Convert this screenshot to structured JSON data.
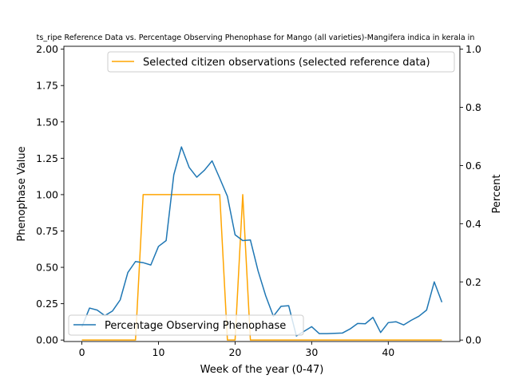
{
  "chart_data": {
    "type": "line",
    "title": "ts_ripe Reference Data vs. Percentage Observing Phenophase for Mango (all varieties)-Mangifera indica in kerala in",
    "xlabel": "Week of the year (0-47)",
    "ylabel_left": "Phenophase Value",
    "ylabel_right": "Percent",
    "xlim": [
      -2.35,
      49.35
    ],
    "ylim_left": [
      -0.01,
      2.02
    ],
    "ylim_right": [
      -0.005,
      1.01
    ],
    "x_ticks": [
      0,
      10,
      20,
      30,
      40
    ],
    "y_ticks_left": [
      0.0,
      0.25,
      0.5,
      0.75,
      1.0,
      1.25,
      1.5,
      1.75,
      2.0
    ],
    "y_tick_labels_left": [
      "0.00",
      "0.25",
      "0.50",
      "0.75",
      "1.00",
      "1.25",
      "1.50",
      "1.75",
      "2.00"
    ],
    "y_ticks_right": [
      0.0,
      0.2,
      0.4,
      0.6,
      0.8,
      1.0
    ],
    "y_tick_labels_right": [
      "0.0",
      "0.2",
      "0.4",
      "0.6",
      "0.8",
      "1.0"
    ],
    "grid": false,
    "series": [
      {
        "name": "Selected citizen observations (selected reference data)",
        "axis": "left",
        "color": "#ffa500",
        "legend_position": "top-right",
        "x": [
          0,
          1,
          2,
          3,
          4,
          5,
          6,
          7,
          8,
          9,
          10,
          11,
          12,
          13,
          14,
          15,
          16,
          17,
          18,
          19,
          20,
          21,
          22,
          23,
          24,
          25,
          26,
          27,
          28,
          29,
          30,
          31,
          32,
          33,
          34,
          35,
          36,
          37,
          38,
          39,
          40,
          41,
          42,
          43,
          44,
          45,
          46,
          47
        ],
        "values": [
          0,
          0,
          0,
          0,
          0,
          0,
          0,
          0,
          1,
          1,
          1,
          1,
          1,
          1,
          1,
          1,
          1,
          1,
          1,
          0,
          0,
          1,
          0,
          0,
          0,
          0,
          0,
          0,
          0,
          0,
          0,
          0,
          0,
          0,
          0,
          0,
          0,
          0,
          0,
          0,
          0,
          0,
          0,
          0,
          0,
          0,
          0,
          0
        ]
      },
      {
        "name": "Percentage Observing Phenophase",
        "axis": "right",
        "color": "#1f77b4",
        "legend_position": "bottom-left",
        "x": [
          0,
          1,
          2,
          3,
          4,
          5,
          6,
          7,
          8,
          9,
          10,
          11,
          12,
          13,
          14,
          15,
          16,
          17,
          18,
          19,
          20,
          21,
          22,
          23,
          24,
          25,
          26,
          27,
          28,
          29,
          30,
          31,
          32,
          33,
          34,
          35,
          36,
          37,
          38,
          39,
          40,
          41,
          42,
          43,
          44,
          45,
          46,
          47
        ],
        "values": [
          0.045,
          0.11,
          0.103,
          0.084,
          0.1,
          0.138,
          0.232,
          0.27,
          0.266,
          0.258,
          0.322,
          0.342,
          0.568,
          0.664,
          0.594,
          0.56,
          0.584,
          0.616,
          0.556,
          0.494,
          0.362,
          0.342,
          0.344,
          0.238,
          0.152,
          0.082,
          0.116,
          0.118,
          0.014,
          0.03,
          0.046,
          0.022,
          0.022,
          0.023,
          0.024,
          0.038,
          0.057,
          0.056,
          0.078,
          0.026,
          0.06,
          0.063,
          0.052,
          0.068,
          0.082,
          0.103,
          0.2,
          0.13
        ]
      }
    ]
  }
}
